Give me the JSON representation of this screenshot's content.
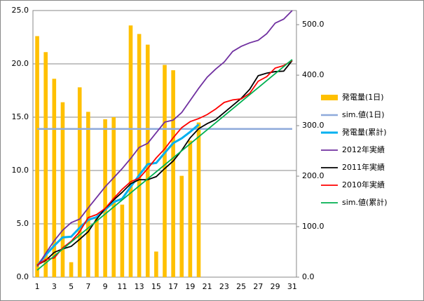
{
  "chart_data": {
    "type": "bar-line",
    "categories": [
      "1",
      null,
      "3",
      null,
      "5",
      null,
      "7",
      null,
      "9",
      null,
      "11",
      null,
      "13",
      null,
      "15",
      null,
      "17",
      null,
      "19",
      null,
      "21",
      null,
      "23",
      null,
      "25",
      null,
      "27",
      null,
      "29",
      null,
      "31"
    ],
    "series": [
      {
        "name": "発電量(1日)",
        "kind": "bar",
        "color": "#ffc000",
        "values": [
          22.6,
          21.1,
          18.6,
          16.4,
          1.4,
          17.8,
          15.5,
          5.5,
          14.8,
          15.0,
          6.8,
          23.6,
          22.8,
          21.8,
          2.4,
          19.9,
          19.4,
          9.5,
          12.8,
          14.5,
          null,
          null,
          null,
          null,
          null,
          null,
          null,
          null,
          null,
          null,
          null
        ]
      },
      {
        "name": "sim.値(1日)",
        "kind": "line",
        "color": "#8eaadb",
        "values": [
          13.9,
          13.9,
          13.9,
          13.9,
          13.9,
          13.9,
          13.9,
          13.9,
          13.9,
          13.9,
          13.9,
          13.9,
          13.9,
          13.9,
          13.9,
          13.9,
          13.9,
          13.9,
          13.9,
          13.9,
          13.9,
          13.9,
          13.9,
          13.9,
          13.9,
          13.9,
          13.9,
          13.9,
          13.9,
          13.9,
          13.9
        ]
      },
      {
        "name": "発電量(累計)",
        "kind": "line",
        "axis": "y2",
        "color": "#00b0f0",
        "width": 3,
        "values": [
          22.6,
          43.7,
          62.3,
          78.7,
          80.1,
          97.9,
          113.4,
          118.9,
          133.7,
          148.7,
          155.5,
          179.1,
          201.9,
          223.7,
          226.1,
          246.0,
          265.4,
          274.9,
          287.7,
          302.2,
          null,
          null,
          null,
          null,
          null,
          null,
          null,
          null,
          null,
          null,
          null
        ]
      },
      {
        "name": "2012年実績",
        "kind": "line",
        "axis": "y2",
        "color": "#7030a0",
        "width": 1.8,
        "values": [
          21,
          47,
          72,
          93,
          108,
          115,
          137,
          158,
          179,
          197,
          215,
          235,
          257,
          265,
          286,
          307,
          311,
          326,
          350,
          374,
          396,
          412,
          426,
          447,
          457,
          464,
          469,
          482,
          503,
          511,
          528
        ]
      },
      {
        "name": "2011年実績",
        "kind": "line",
        "axis": "y2",
        "color": "#000000",
        "width": 1.8,
        "values": [
          24,
          33,
          49,
          56,
          61,
          75,
          90,
          115,
          136,
          153,
          168,
          185,
          193,
          193,
          199,
          215,
          230,
          251,
          276,
          294,
          304,
          312,
          326,
          340,
          354,
          372,
          399,
          404,
          407,
          408,
          429
        ]
      },
      {
        "name": "2010年実績",
        "kind": "line",
        "axis": "y2",
        "color": "#ff0000",
        "width": 1.8,
        "values": [
          24,
          35,
          38,
          58,
          71,
          90,
          118,
          124,
          136,
          156,
          174,
          189,
          196,
          215,
          236,
          254,
          276,
          296,
          308,
          314,
          322,
          333,
          346,
          351,
          353,
          364,
          388,
          397,
          414,
          419,
          429
        ]
      },
      {
        "name": "sim.値(累計)",
        "kind": "line",
        "axis": "y2",
        "color": "#00b050",
        "width": 1.8,
        "values": [
          13.9,
          27.8,
          41.7,
          55.6,
          69.5,
          83.4,
          97.3,
          111.2,
          125.1,
          139.0,
          152.9,
          166.8,
          180.7,
          194.6,
          208.5,
          222.4,
          236.3,
          250.2,
          264.1,
          278.0,
          291.9,
          305.8,
          319.7,
          333.6,
          347.5,
          361.4,
          375.3,
          389.2,
          403.1,
          417.0,
          430.9
        ]
      }
    ],
    "ylim": [
      0,
      25
    ],
    "yticks": [
      {
        "value": 0,
        "label": "0.0"
      },
      {
        "value": 5,
        "label": "5.0"
      },
      {
        "value": 10,
        "label": "10.0"
      },
      {
        "value": 15,
        "label": "15.0"
      },
      {
        "value": 20,
        "label": "20.0"
      },
      {
        "value": 25,
        "label": "25.0"
      }
    ],
    "y2lim": [
      0,
      528
    ],
    "y2ticks": [
      {
        "value": 0,
        "label": "0.0"
      },
      {
        "value": 100,
        "label": "100.0"
      },
      {
        "value": 200,
        "label": "200.0"
      },
      {
        "value": 300,
        "label": "300.0"
      },
      {
        "value": 400,
        "label": "400.0"
      },
      {
        "value": 500,
        "label": "500.0"
      }
    ],
    "grid": true,
    "legend": "right"
  }
}
